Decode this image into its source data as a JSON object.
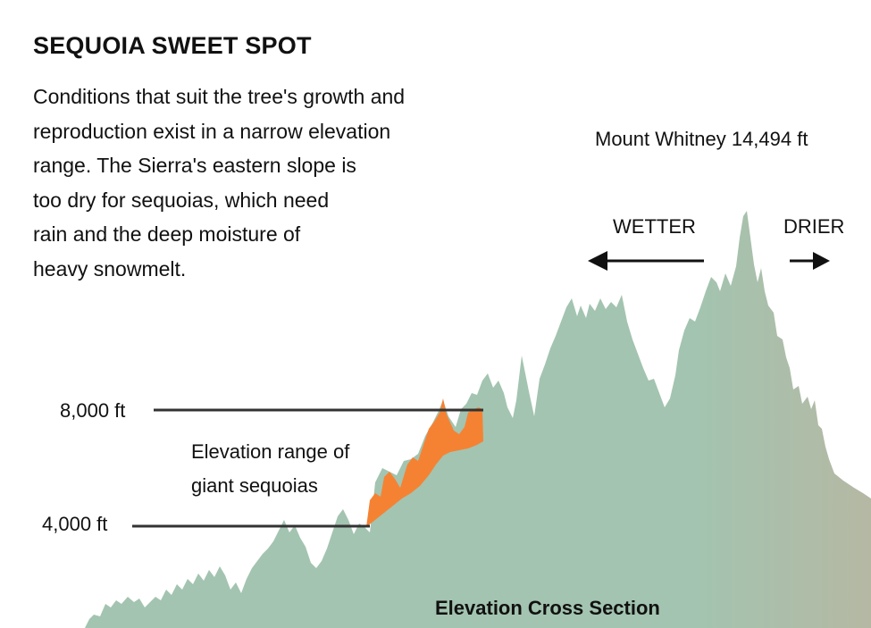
{
  "title": "SEQUOIA SWEET SPOT",
  "description_lines": [
    "Conditions that suit the tree's growth and",
    "reproduction exist in a narrow elevation",
    "range. The Sierra's eastern slope is",
    "too dry for sequoias, which need",
    "rain and the deep moisture of",
    "heavy snowmelt."
  ],
  "peak_label": "Mount Whitney 14,494 ft",
  "wetter_label": "WETTER",
  "drier_label": "DRIER",
  "elevation_marks": [
    {
      "label": "8,000 ft",
      "feet": 8000
    },
    {
      "label": "4,000 ft",
      "feet": 4000
    }
  ],
  "band_label_lines": [
    "Elevation range of",
    "giant sequoias"
  ],
  "section_label": "Elevation Cross Section",
  "colors": {
    "terrain_west": "#a3c4b0",
    "terrain_east": "#b5b8a3",
    "sequoia_band": "#f58233",
    "lines": "#333333",
    "text": "#111111"
  }
}
